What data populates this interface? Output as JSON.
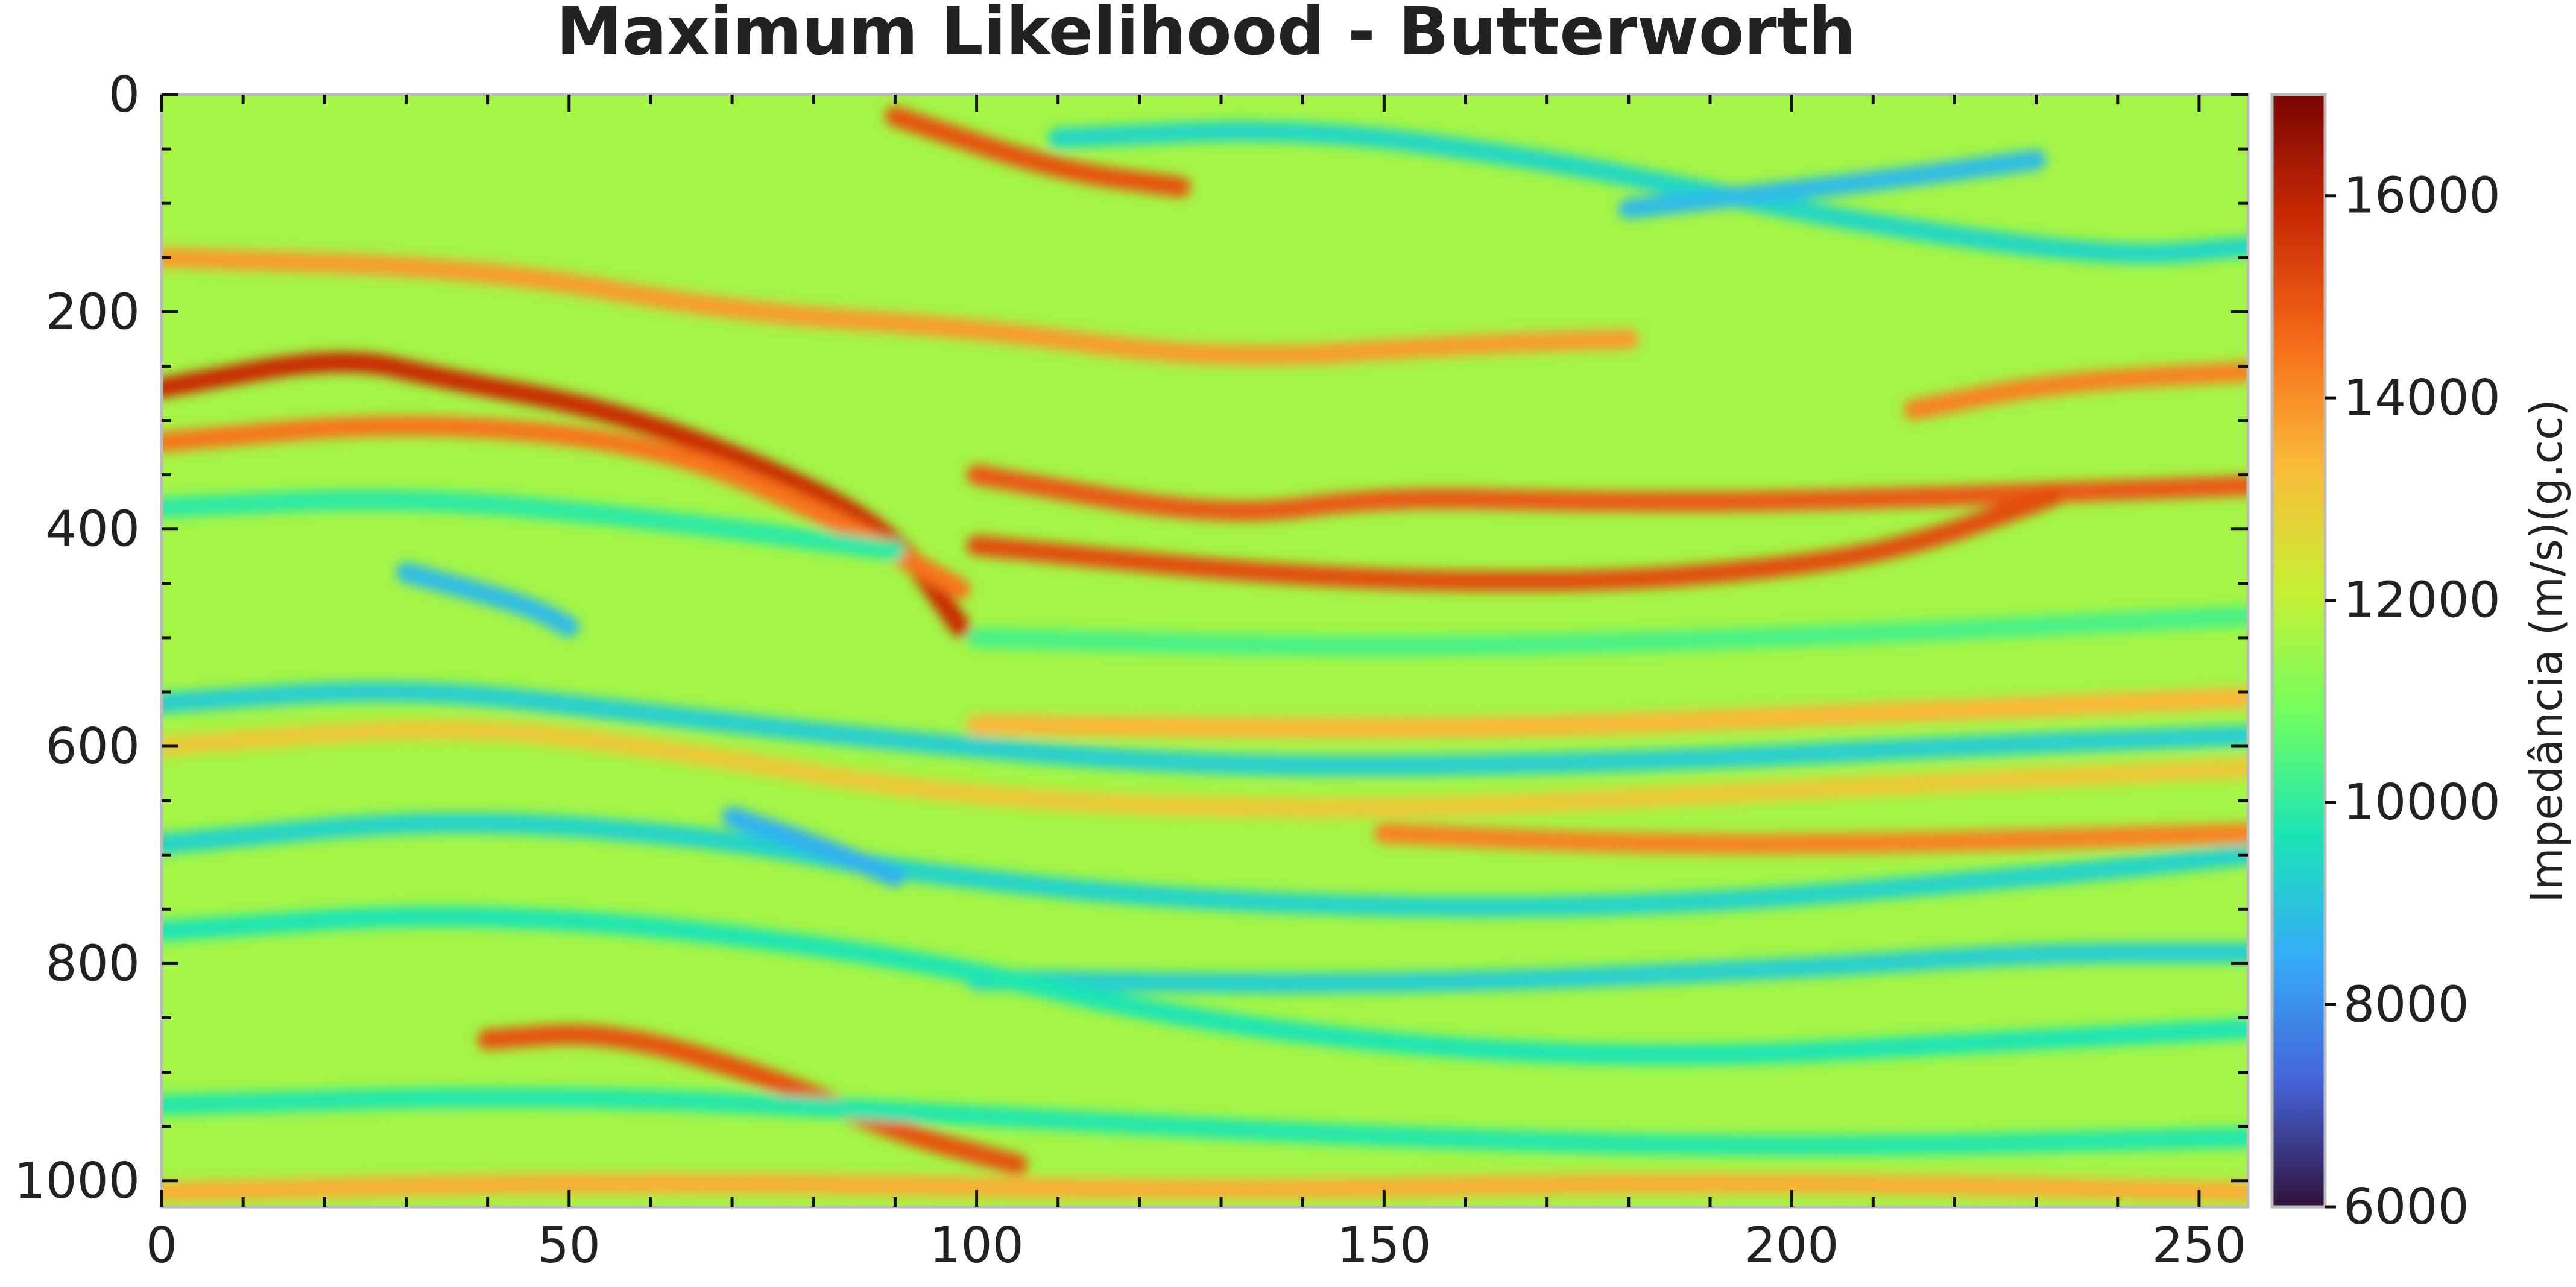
{
  "chart_data": {
    "type": "heatmap",
    "title": "Maximum Likelihood - Butterworth",
    "xlabel": "",
    "ylabel": "",
    "xlim": [
      0,
      256
    ],
    "ylim": [
      1024,
      0
    ],
    "x_ticks": [
      "0",
      "50",
      "100",
      "150",
      "200",
      "250"
    ],
    "x_tick_values": [
      0,
      50,
      100,
      150,
      200,
      250
    ],
    "y_ticks": [
      "0",
      "200",
      "400",
      "600",
      "800",
      "1000"
    ],
    "y_tick_values": [
      0,
      200,
      400,
      600,
      800,
      1000
    ],
    "colorbar": {
      "label": "Impedância (m/s)(g.cc)",
      "vmin": 6000,
      "vmax": 17000,
      "ticks": [
        "6000",
        "8000",
        "10000",
        "12000",
        "14000",
        "16000"
      ],
      "tick_values": [
        6000,
        8000,
        10000,
        12000,
        14000,
        16000
      ],
      "colormap": "turbo"
    },
    "colormap_stops": [
      "#30123b",
      "#4662d7",
      "#36aaf9",
      "#1ae4b6",
      "#72fe5e",
      "#c8ef34",
      "#faba39",
      "#f66b19",
      "#ca2a04",
      "#7a0403"
    ],
    "background_value": 11600,
    "reflectors": [
      {
        "points": [
          [
            0,
            270
          ],
          [
            22,
            240
          ],
          [
            35,
            262
          ],
          [
            55,
            290
          ],
          [
            75,
            345
          ],
          [
            90,
            405
          ],
          [
            98,
            490
          ]
        ],
        "value": 15800
      },
      {
        "points": [
          [
            0,
            320
          ],
          [
            30,
            300
          ],
          [
            60,
            320
          ],
          [
            80,
            380
          ],
          [
            98,
            455
          ]
        ],
        "value": 14400
      },
      {
        "points": [
          [
            100,
            350
          ],
          [
            130,
            390
          ],
          [
            150,
            370
          ],
          [
            175,
            375
          ],
          [
            200,
            375
          ],
          [
            256,
            360
          ]
        ],
        "value": 14900
      },
      {
        "points": [
          [
            100,
            415
          ],
          [
            140,
            445
          ],
          [
            175,
            450
          ],
          [
            200,
            435
          ],
          [
            215,
            415
          ],
          [
            232,
            370
          ]
        ],
        "value": 15100
      },
      {
        "points": [
          [
            0,
            150
          ],
          [
            40,
            160
          ],
          [
            70,
            200
          ],
          [
            100,
            215
          ],
          [
            130,
            245
          ],
          [
            160,
            230
          ],
          [
            180,
            225
          ]
        ],
        "value": 13800
      },
      {
        "points": [
          [
            90,
            20
          ],
          [
            110,
            70
          ],
          [
            125,
            85
          ]
        ],
        "value": 15000
      },
      {
        "points": [
          [
            215,
            290
          ],
          [
            232,
            265
          ],
          [
            256,
            255
          ]
        ],
        "value": 14200
      },
      {
        "points": [
          [
            150,
            680
          ],
          [
            180,
            690
          ],
          [
            210,
            690
          ],
          [
            256,
            680
          ]
        ],
        "value": 14200
      },
      {
        "points": [
          [
            40,
            870
          ],
          [
            55,
            862
          ],
          [
            75,
            905
          ],
          [
            90,
            955
          ],
          [
            105,
            985
          ]
        ],
        "value": 15000
      },
      {
        "points": [
          [
            0,
            1010
          ],
          [
            60,
            1000
          ],
          [
            130,
            1010
          ],
          [
            190,
            1000
          ],
          [
            256,
            1010
          ]
        ],
        "value": 13500
      },
      {
        "points": [
          [
            100,
            580
          ],
          [
            160,
            585
          ],
          [
            210,
            570
          ],
          [
            256,
            555
          ]
        ],
        "value": 13400
      },
      {
        "points": [
          [
            0,
            600
          ],
          [
            35,
            580
          ],
          [
            60,
            600
          ],
          [
            100,
            650
          ],
          [
            150,
            660
          ],
          [
            200,
            640
          ],
          [
            256,
            620
          ]
        ],
        "value": 13000
      },
      {
        "points": [
          [
            0,
            560
          ],
          [
            30,
            545
          ],
          [
            60,
            570
          ],
          [
            90,
            595
          ],
          [
            130,
            620
          ],
          [
            180,
            615
          ],
          [
            220,
            600
          ],
          [
            256,
            590
          ]
        ],
        "value": 9200
      },
      {
        "points": [
          [
            0,
            690
          ],
          [
            35,
            665
          ],
          [
            70,
            685
          ],
          [
            90,
            715
          ],
          [
            130,
            745
          ],
          [
            180,
            750
          ],
          [
            230,
            720
          ],
          [
            256,
            700
          ]
        ],
        "value": 9300
      },
      {
        "points": [
          [
            30,
            440
          ],
          [
            45,
            470
          ],
          [
            50,
            490
          ]
        ],
        "value": 8800
      },
      {
        "points": [
          [
            70,
            665
          ],
          [
            80,
            690
          ],
          [
            90,
            720
          ]
        ],
        "value": 8600
      },
      {
        "points": [
          [
            100,
            815
          ],
          [
            150,
            820
          ],
          [
            200,
            805
          ],
          [
            230,
            790
          ],
          [
            256,
            790
          ]
        ],
        "value": 9200
      },
      {
        "points": [
          [
            0,
            770
          ],
          [
            40,
            750
          ],
          [
            90,
            790
          ],
          [
            130,
            860
          ],
          [
            180,
            890
          ],
          [
            230,
            870
          ],
          [
            256,
            860
          ]
        ],
        "value": 9700
      },
      {
        "points": [
          [
            0,
            930
          ],
          [
            50,
            920
          ],
          [
            100,
            940
          ],
          [
            150,
            960
          ],
          [
            200,
            970
          ],
          [
            256,
            960
          ]
        ],
        "value": 9800
      },
      {
        "points": [
          [
            110,
            40
          ],
          [
            140,
            30
          ],
          [
            170,
            60
          ],
          [
            190,
            90
          ],
          [
            210,
            120
          ],
          [
            240,
            150
          ],
          [
            256,
            140
          ]
        ],
        "value": 9400
      },
      {
        "points": [
          [
            180,
            105
          ],
          [
            210,
            80
          ],
          [
            230,
            60
          ]
        ],
        "value": 8800
      },
      {
        "points": [
          [
            0,
            380
          ],
          [
            30,
            370
          ],
          [
            60,
            390
          ],
          [
            90,
            420
          ]
        ],
        "value": 9900
      },
      {
        "points": [
          [
            100,
            500
          ],
          [
            150,
            510
          ],
          [
            200,
            500
          ],
          [
            256,
            480
          ]
        ],
        "value": 10300
      }
    ]
  }
}
